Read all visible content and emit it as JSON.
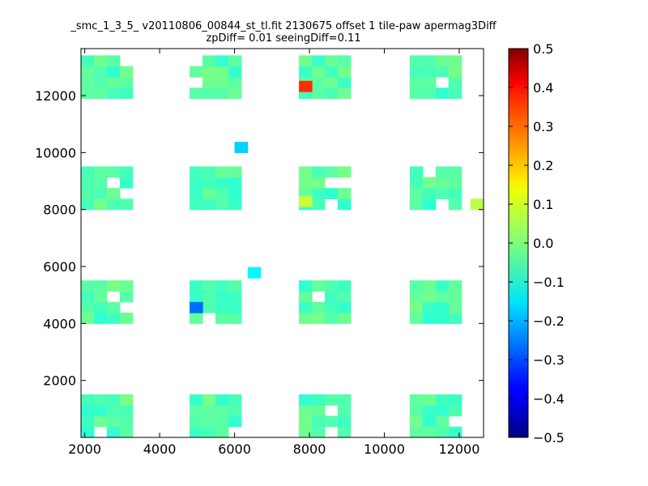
{
  "chart_data": {
    "type": "heatmap",
    "title": "_smc_1_3_5_ v20110806_00844_st_tl.fit 2130675 offset 1 tile-paw apermag3Diff",
    "subtitle": "zpDiff= 0.01 seeingDiff=0.11",
    "xlim": [
      1900,
      12650
    ],
    "ylim": [
      0,
      13650
    ],
    "xticks": [
      "2000",
      "4000",
      "6000",
      "8000",
      "10000",
      "12000"
    ],
    "yticks": [
      "2000",
      "4000",
      "6000",
      "8000",
      "10000",
      "12000"
    ],
    "colorbar": {
      "colormap": "jet",
      "range": [
        -0.5,
        0.5
      ],
      "ticks": [
        "0.5",
        "0.4",
        "0.3",
        "0.2",
        "0.1",
        "0.0",
        "−0.1",
        "−0.2",
        "−0.3",
        "−0.4",
        "−0.5"
      ]
    },
    "cell_size": [
      345,
      378
    ],
    "tile_grid": {
      "x_starts": [
        1900,
        4800,
        7720,
        10680
      ],
      "y_starts": [
        0,
        4000,
        8000,
        11900
      ],
      "cols": 4,
      "rows": 4,
      "base_value": -0.04
    },
    "highlighted_cells": [
      {
        "x": 7720,
        "y": 12141,
        "value": 0.33
      },
      {
        "x": 4800,
        "y": 4378,
        "value": -0.27
      },
      {
        "x": 6000,
        "y": 10000,
        "value": -0.17
      },
      {
        "x": 6350,
        "y": 5600,
        "value": -0.13
      },
      {
        "x": 7720,
        "y": 8100,
        "value": 0.07
      },
      {
        "x": 12300,
        "y": 8000,
        "value": 0.06
      }
    ]
  }
}
